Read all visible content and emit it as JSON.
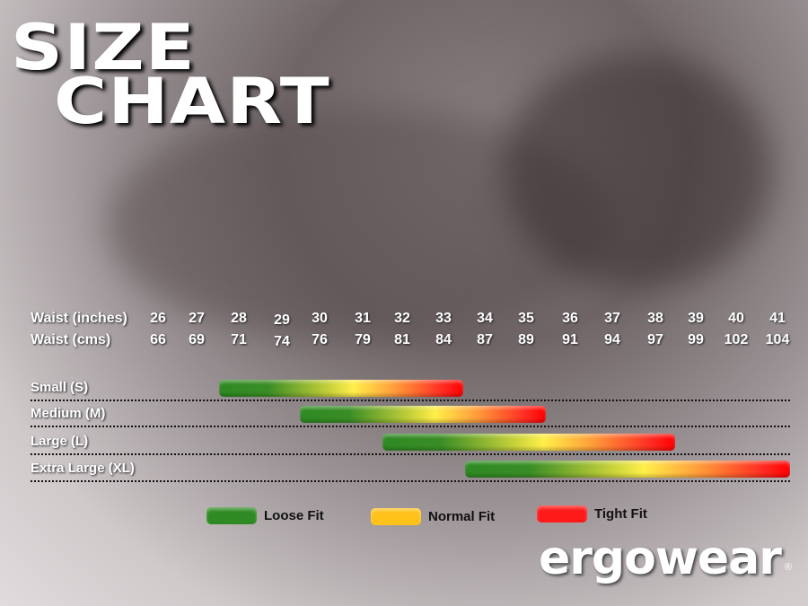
{
  "title": {
    "line1": "SIZE",
    "line2": "CHART"
  },
  "chart_data": {
    "type": "range-bar",
    "row_headers": [
      "Waist (inches)",
      "Waist (cms)"
    ],
    "waist_inches": [
      26,
      27,
      28,
      29,
      30,
      31,
      32,
      33,
      34,
      35,
      36,
      37,
      38,
      39,
      40,
      41
    ],
    "waist_cms": [
      66,
      69,
      71,
      74,
      76,
      79,
      81,
      84,
      87,
      89,
      91,
      94,
      97,
      99,
      102,
      104
    ],
    "sizes": [
      {
        "label": "Small (S)",
        "from_inches": 28,
        "to_inches": 33
      },
      {
        "label": "Medium (M)",
        "from_inches": 30,
        "to_inches": 35
      },
      {
        "label": "Large (L)",
        "from_inches": 32,
        "to_inches": 38
      },
      {
        "label": "Extra Large (XL)",
        "from_inches": 34,
        "to_inches": 41
      }
    ],
    "legend": [
      {
        "label": "Loose Fit",
        "color": "#2e8a23"
      },
      {
        "label": "Normal Fit",
        "color": "#ffc21a"
      },
      {
        "label": "Tight Fit",
        "color": "#ff1a1a"
      }
    ]
  },
  "brand": {
    "logo_text": "ergowear",
    "registered": "®"
  }
}
